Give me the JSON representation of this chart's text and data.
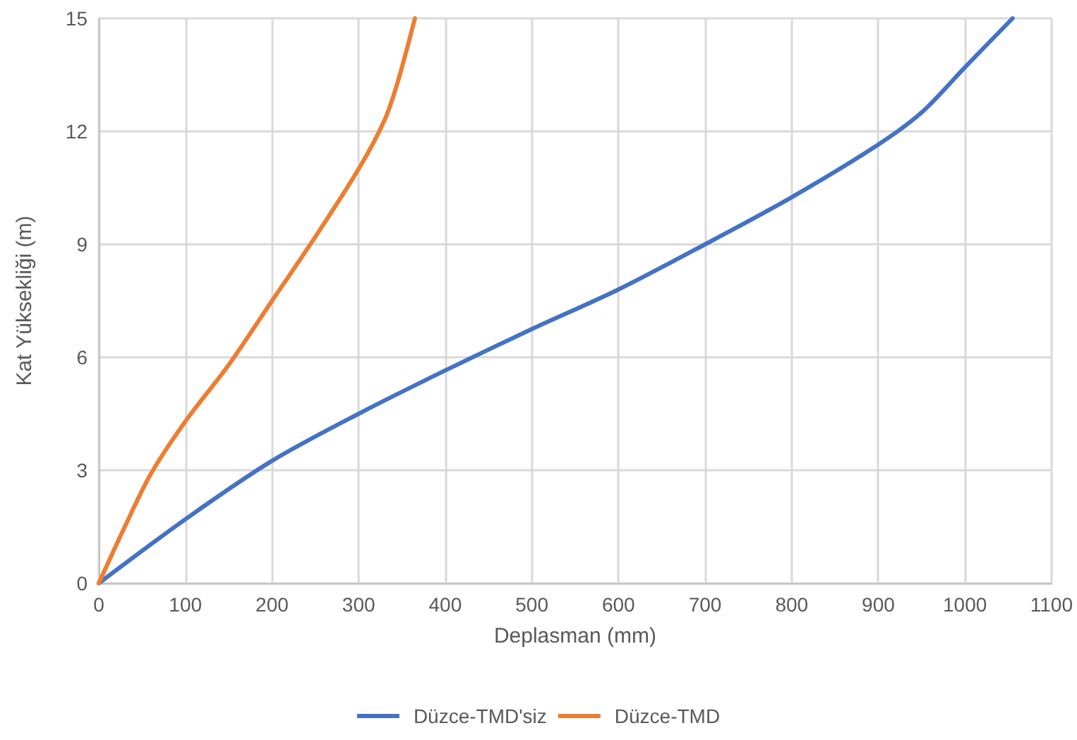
{
  "chart_data": {
    "type": "line",
    "xlabel": "Deplasman (mm)",
    "ylabel": "Kat Yüksekliği (m)",
    "xlim": [
      0,
      1100
    ],
    "xticks": [
      0,
      100,
      200,
      300,
      400,
      500,
      600,
      700,
      800,
      900,
      1000,
      1100
    ],
    "ylim": [
      0,
      15
    ],
    "yticks": [
      0,
      3,
      6,
      9,
      12,
      15
    ],
    "grid": true,
    "legend": "bottom",
    "marker": "none",
    "line_style": "solid",
    "series": [
      {
        "name": "Düzce-TMD'siz",
        "color": "#4472c4",
        "x": [
          0,
          100,
          200,
          300,
          400,
          500,
          600,
          700,
          800,
          900,
          950,
          1000,
          1055
        ],
        "values": [
          0,
          1.7,
          3.25,
          4.5,
          5.65,
          6.75,
          7.8,
          9.0,
          10.25,
          11.65,
          12.5,
          13.7,
          15
        ]
      },
      {
        "name": "Düzce-TMD",
        "color": "#ed7d31",
        "x": [
          0,
          30,
          60,
          100,
          150,
          200,
          250,
          300,
          330,
          345,
          365
        ],
        "values": [
          0,
          1.5,
          2.9,
          4.3,
          5.8,
          7.5,
          9.2,
          11.0,
          12.3,
          13.3,
          15
        ]
      }
    ]
  }
}
